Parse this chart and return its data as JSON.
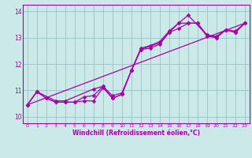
{
  "xlabel": "Windchill (Refroidissement éolien,°C)",
  "xlim": [
    -0.5,
    23.5
  ],
  "ylim": [
    9.75,
    14.25
  ],
  "yticks": [
    10,
    11,
    12,
    13,
    14
  ],
  "xticks": [
    0,
    1,
    2,
    3,
    4,
    5,
    6,
    7,
    8,
    9,
    10,
    11,
    12,
    13,
    14,
    15,
    16,
    17,
    18,
    19,
    20,
    21,
    22,
    23
  ],
  "bg_color": "#cce9e9",
  "line_color": "#aa00aa",
  "grid_color": "#99cccc",
  "line1_x": [
    0,
    1,
    2,
    3,
    4,
    5,
    6,
    7,
    8,
    9,
    10,
    11,
    12,
    13,
    14,
    15,
    16,
    17,
    18,
    19,
    20,
    21,
    22,
    23
  ],
  "line1_y": [
    10.45,
    10.95,
    10.7,
    10.55,
    10.55,
    10.55,
    10.6,
    10.6,
    11.1,
    10.7,
    10.85,
    11.75,
    12.55,
    12.6,
    12.75,
    13.2,
    13.35,
    13.55,
    13.55,
    13.05,
    13.0,
    13.3,
    13.2,
    13.55
  ],
  "line2_x": [
    0,
    1,
    2,
    3,
    4,
    5,
    6,
    7,
    8,
    9,
    10,
    11,
    12,
    13,
    14,
    15,
    16,
    17,
    18,
    19,
    20,
    21,
    22,
    23
  ],
  "line2_y": [
    10.45,
    10.95,
    10.7,
    10.55,
    10.55,
    10.55,
    10.75,
    10.8,
    11.15,
    10.8,
    10.9,
    11.75,
    12.6,
    12.7,
    12.85,
    13.25,
    13.55,
    13.55,
    13.55,
    13.1,
    13.05,
    13.3,
    13.25,
    13.55
  ],
  "line3_x": [
    0,
    1,
    3,
    4,
    7,
    8,
    9,
    10,
    11,
    12,
    14,
    15,
    16,
    17,
    19,
    20,
    21,
    22,
    23
  ],
  "line3_y": [
    10.45,
    10.95,
    10.6,
    10.6,
    11.05,
    11.15,
    10.7,
    10.85,
    11.75,
    12.55,
    12.8,
    13.2,
    13.55,
    13.85,
    13.1,
    13.0,
    13.3,
    13.2,
    13.55
  ],
  "line4_x": [
    0,
    23
  ],
  "line4_y": [
    10.45,
    13.55
  ]
}
